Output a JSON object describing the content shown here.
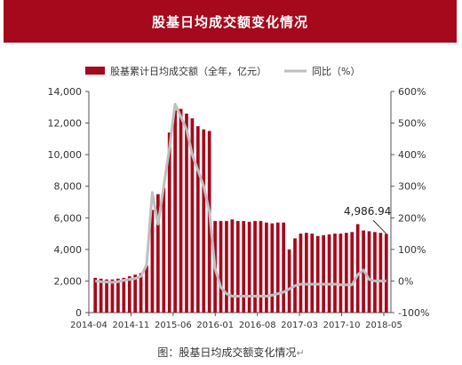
{
  "banner": {
    "title": "股基日均成交额变化情况"
  },
  "caption": {
    "text": "图：股基日均成交额变化情况"
  },
  "chart_data": {
    "type": "bar",
    "legend": {
      "placement": "top",
      "bar_label": "股基累计日均成交额（全年，亿元）",
      "line_label": "同比（%）"
    },
    "y_left": {
      "ticks": [
        "0",
        "2,000",
        "4,000",
        "6,000",
        "8,000",
        "10,000",
        "12,000",
        "14,000"
      ],
      "range": [
        0,
        14000
      ]
    },
    "y_right": {
      "ticks": [
        "-100%",
        "0%",
        "100%",
        "200%",
        "300%",
        "400%",
        "500%",
        "600%"
      ],
      "range": [
        -100,
        600
      ]
    },
    "x_tick_labels": [
      "2014-04",
      "2014-11",
      "2015-06",
      "2016-01",
      "2016-08",
      "2017-03",
      "2017-10",
      "2018-05"
    ],
    "annotation": {
      "text": "4,986.94"
    },
    "colors": {
      "bar": "#a6091b",
      "line": "#bfbfbf",
      "axis": "#555555"
    },
    "series": [
      {
        "kind": "bar",
        "values": [
          2200,
          2150,
          2100,
          2100,
          2150,
          2200,
          2300,
          2400,
          2500,
          3000,
          6500,
          7500,
          7900,
          11400,
          12800,
          12900,
          12600,
          12300,
          11800,
          11600,
          11500,
          5800,
          5800,
          5800,
          5900,
          5800,
          5800,
          5750,
          5800,
          5800,
          5700,
          5650,
          5700,
          5700,
          4000,
          4700,
          5000,
          5050,
          5000,
          4850,
          4900,
          4950,
          5000,
          5000,
          5050,
          5100,
          5600,
          5200,
          5150,
          5100,
          5050,
          4987
        ]
      },
      {
        "kind": "line",
        "axis": "right",
        "values": [
          0,
          -2,
          -3,
          -4,
          -2,
          2,
          5,
          8,
          15,
          50,
          280,
          180,
          300,
          420,
          560,
          520,
          480,
          400,
          350,
          300,
          220,
          40,
          -20,
          -40,
          -48,
          -48,
          -48,
          -48,
          -48,
          -48,
          -48,
          -45,
          -40,
          -35,
          -25,
          -15,
          -10,
          -10,
          -10,
          -10,
          -10,
          -10,
          -10,
          -12,
          -12,
          -12,
          20,
          35,
          5,
          0,
          0,
          0
        ]
      }
    ]
  }
}
